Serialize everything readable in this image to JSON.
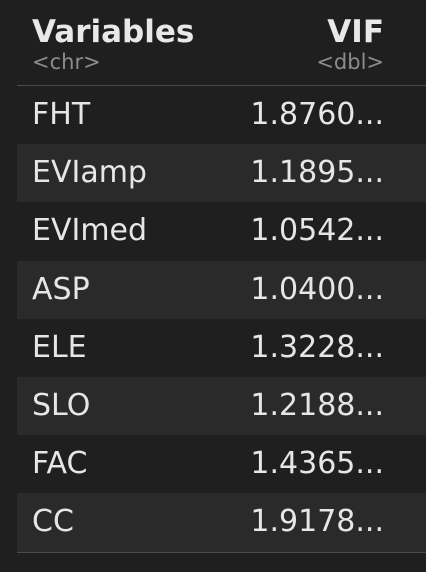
{
  "table": {
    "columns": [
      {
        "name": "Variables",
        "type": "<chr>"
      },
      {
        "name": "VIF",
        "type": "<dbl>"
      }
    ],
    "rows": [
      {
        "variable": "FHT",
        "vif": "1.8760..."
      },
      {
        "variable": "EVIamp",
        "vif": "1.1895..."
      },
      {
        "variable": "EVImed",
        "vif": "1.0542..."
      },
      {
        "variable": "ASP",
        "vif": "1.0400..."
      },
      {
        "variable": "ELE",
        "vif": "1.3228..."
      },
      {
        "variable": "SLO",
        "vif": "1.2188..."
      },
      {
        "variable": "FAC",
        "vif": "1.4365..."
      },
      {
        "variable": "CC",
        "vif": "1.9178..."
      }
    ]
  },
  "colors": {
    "background": "#1f1f1f",
    "stripe": "#2a2a2a",
    "text": "#e6e6e6",
    "type_text": "#8c8c8c"
  }
}
